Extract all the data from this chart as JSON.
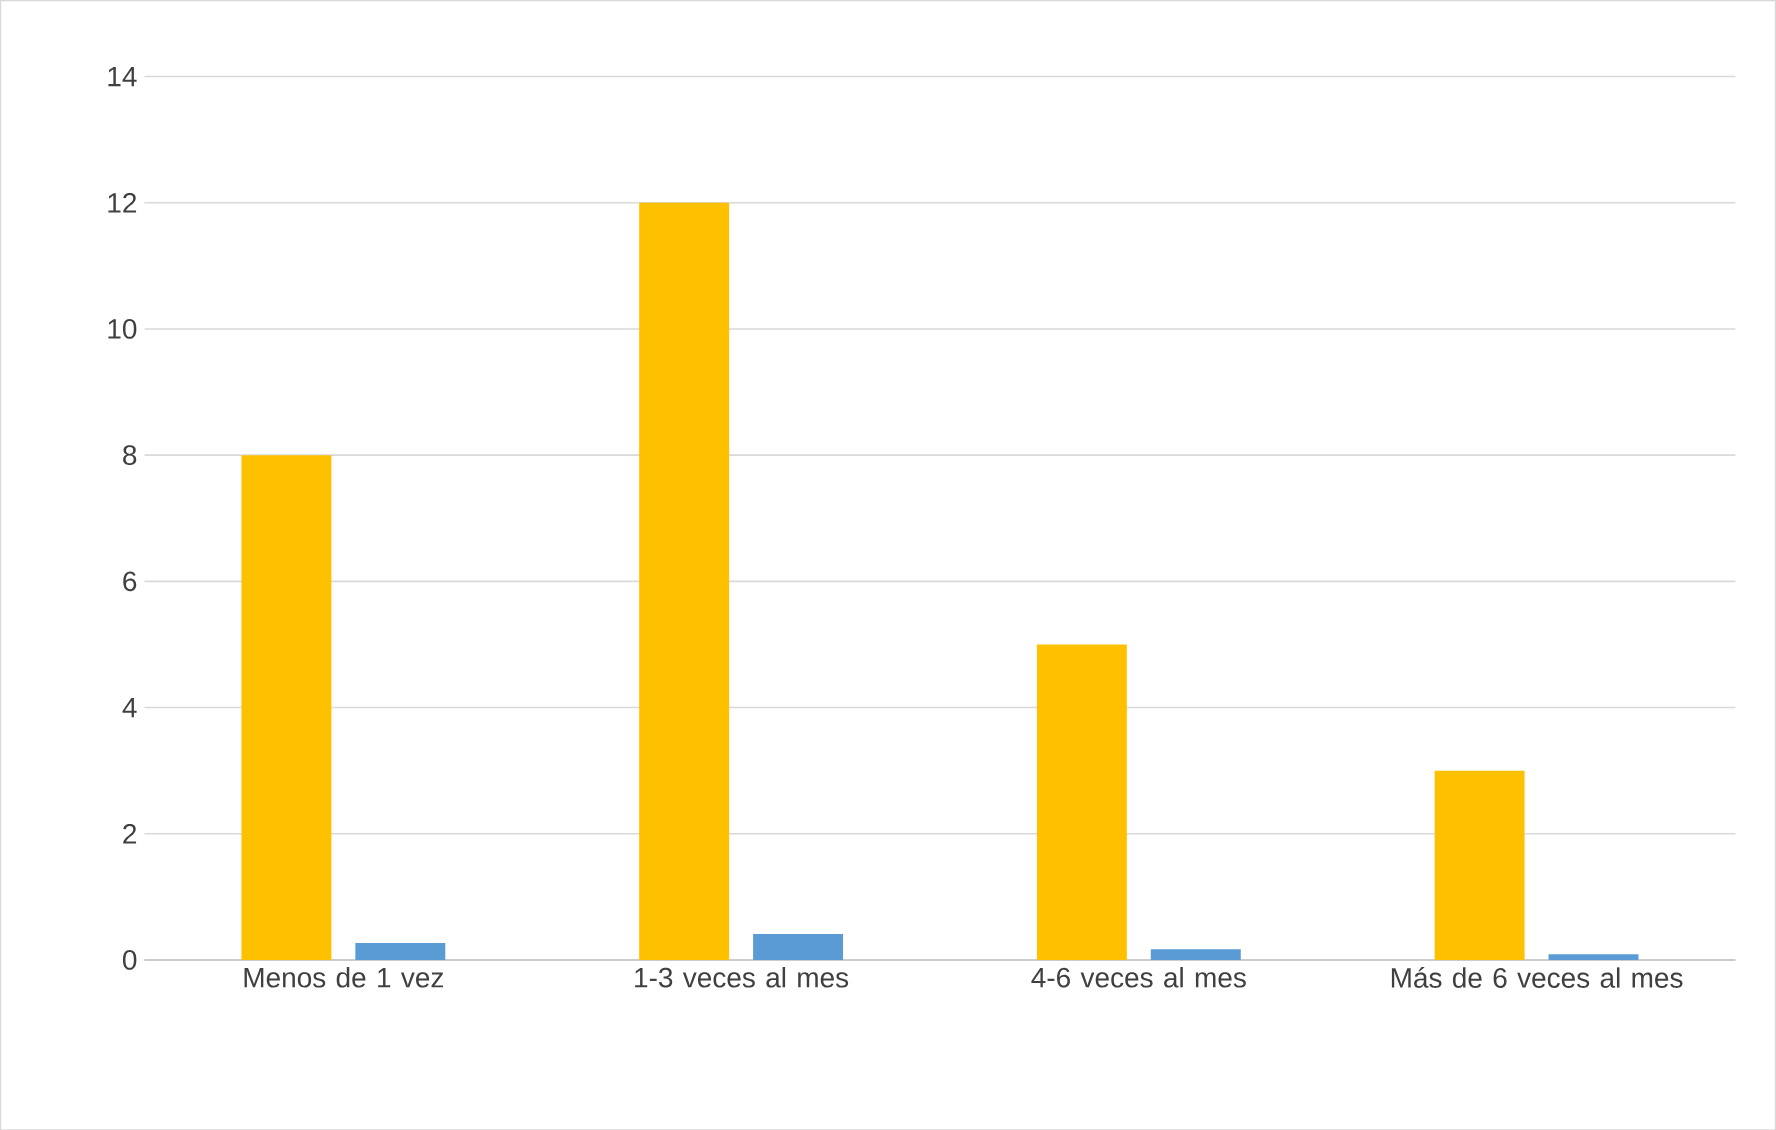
{
  "chart_data": {
    "type": "bar",
    "categories": [
      "Menos de 1 vez",
      "1-3 veces al mes",
      "4-6 veces al mes",
      "Más de 6 veces al mes"
    ],
    "series": [
      {
        "color": "#ffc000",
        "values": [
          8,
          12,
          5,
          3
        ]
      },
      {
        "color": "#5b9bd5",
        "values": [
          0.27,
          0.41,
          0.17,
          0.09
        ]
      }
    ],
    "ylim": [
      0,
      14
    ],
    "yticks": [
      0,
      2,
      4,
      6,
      8,
      10,
      12,
      14
    ],
    "grid": "y"
  }
}
